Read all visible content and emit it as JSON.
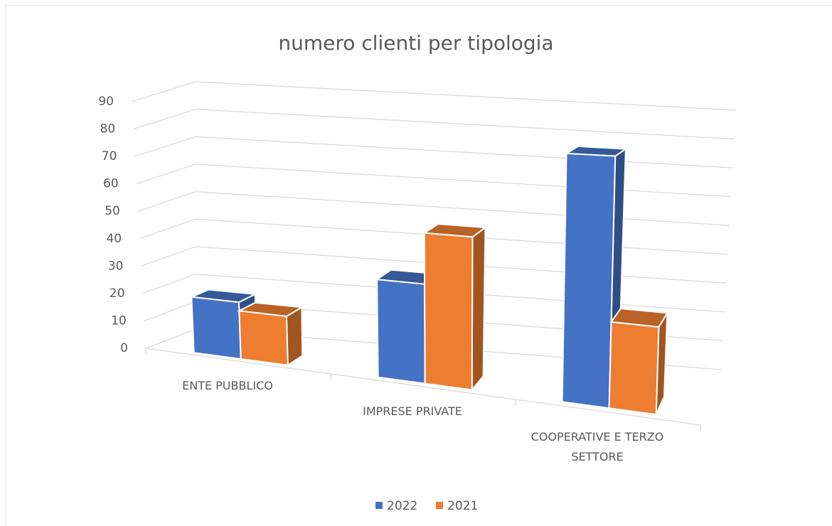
{
  "chart_data": {
    "type": "bar",
    "title": "numero clienti per tipologia",
    "categories": [
      "ENTE PUBBLICO",
      "IMPRESE PRIVATE",
      "COOPERATIVE E TERZO SETTORE"
    ],
    "series": [
      {
        "name": "2022",
        "color": "#4472c4",
        "values": [
          20,
          33,
          79
        ]
      },
      {
        "name": "2021",
        "color": "#ed7d31",
        "values": [
          17,
          50,
          27
        ]
      }
    ],
    "ylim": [
      0,
      90
    ],
    "yticks": [
      0,
      10,
      20,
      30,
      40,
      50,
      60,
      70,
      80,
      90
    ],
    "grid": true,
    "legend": "bottom"
  }
}
